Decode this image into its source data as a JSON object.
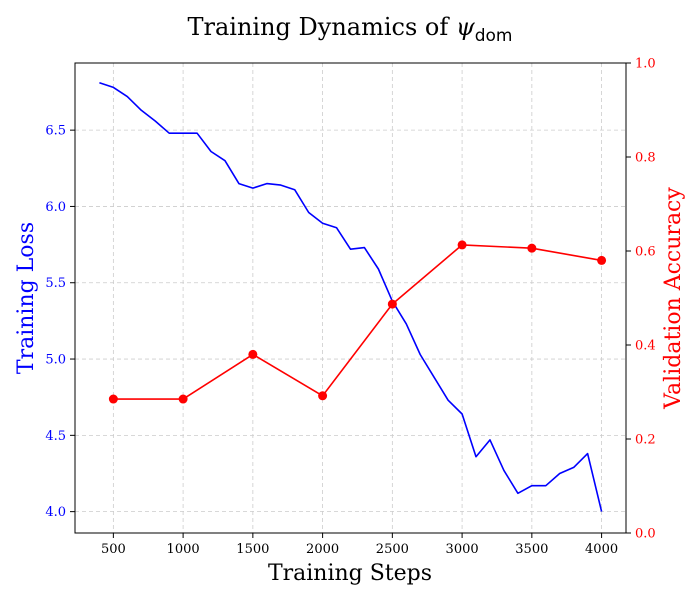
{
  "chart_data": {
    "type": "line",
    "title": "Training Dynamics of",
    "title_symbol": "ψ",
    "title_subscript": "dom",
    "xlabel": "Training Steps",
    "ylabel_left": "Training Loss",
    "ylabel_right": "Validation Accuracy",
    "xlim": [
      225,
      4175
    ],
    "ylim_left": [
      3.86,
      6.94
    ],
    "ylim_right": [
      0,
      1.0
    ],
    "x_ticks": [
      500,
      1000,
      1500,
      2000,
      2500,
      3000,
      3500,
      4000
    ],
    "y_left_ticks": [
      "4.0",
      "4.5",
      "5.0",
      "5.5",
      "6.0",
      "6.5"
    ],
    "y_right_ticks": [
      "0.0",
      "0.2",
      "0.4",
      "0.6",
      "0.8",
      "1.0"
    ],
    "grid": true,
    "colors": {
      "loss": "#0000ff",
      "accuracy": "#ff0000",
      "grid": "#cccccc"
    },
    "series": [
      {
        "axis": "left",
        "x": [
          400,
          500,
          600,
          700,
          800,
          900,
          1000,
          1100,
          1200,
          1300,
          1400,
          1500,
          1600,
          1700,
          1800,
          1900,
          2000,
          2100,
          2200,
          2300,
          2400,
          2500,
          2600,
          2700,
          2800,
          2900,
          3000,
          3100,
          3200,
          3300,
          3400,
          3500,
          3600,
          3700,
          3800,
          3900,
          4000
        ],
        "values": [
          6.81,
          6.78,
          6.72,
          6.63,
          6.56,
          6.48,
          6.48,
          6.48,
          6.36,
          6.3,
          6.15,
          6.12,
          6.15,
          6.14,
          6.11,
          5.96,
          5.89,
          5.86,
          5.72,
          5.73,
          5.59,
          5.38,
          5.23,
          5.03,
          4.88,
          4.73,
          4.64,
          4.36,
          4.47,
          4.27,
          4.12,
          4.17,
          4.17,
          4.25,
          4.29,
          4.38,
          4.0
        ]
      },
      {
        "axis": "right",
        "x": [
          500,
          1000,
          1500,
          2000,
          2500,
          3000,
          3500,
          4000
        ],
        "values": [
          0.285,
          0.285,
          0.38,
          0.292,
          0.487,
          0.613,
          0.606,
          0.58
        ]
      }
    ]
  }
}
